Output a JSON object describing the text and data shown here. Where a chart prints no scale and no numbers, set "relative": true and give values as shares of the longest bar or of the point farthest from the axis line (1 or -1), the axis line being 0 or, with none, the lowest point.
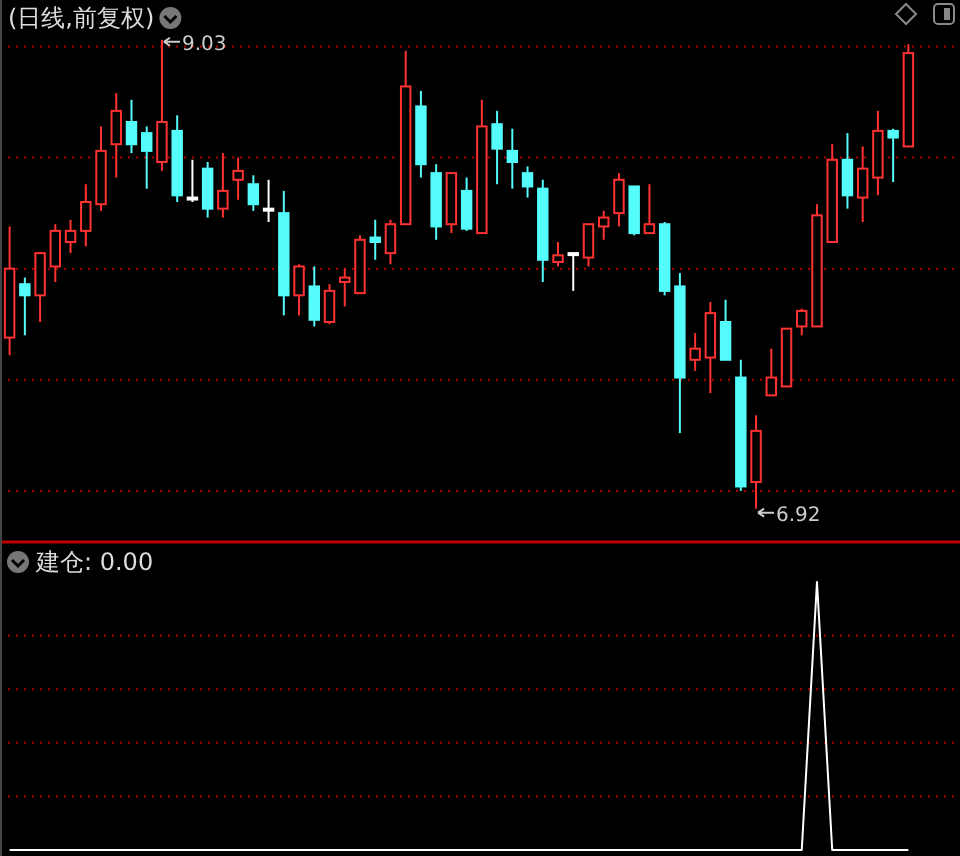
{
  "chart_data": [
    {
      "type": "candlestick",
      "title": "(日线,前复权)",
      "categories": [
        null,
        null,
        null,
        null,
        null,
        null,
        null,
        null,
        null,
        null,
        null,
        null,
        null,
        null,
        null,
        null,
        null,
        null,
        null,
        null,
        null,
        null,
        null,
        null,
        null,
        null,
        null,
        null,
        null,
        null,
        null,
        null,
        null,
        null,
        null,
        null,
        null,
        null,
        null,
        null,
        null,
        null,
        null,
        null,
        null,
        null,
        null,
        null,
        null,
        null,
        null,
        null,
        null,
        null,
        null,
        null,
        null,
        null,
        null,
        null
      ],
      "ohlc": [
        [
          7.69,
          8.19,
          7.61,
          8.0
        ],
        [
          7.93,
          7.96,
          7.7,
          7.88
        ],
        [
          7.88,
          8.07,
          7.76,
          8.07
        ],
        [
          8.01,
          8.2,
          7.94,
          8.17
        ],
        [
          8.12,
          8.22,
          8.07,
          8.17
        ],
        [
          8.17,
          8.38,
          8.1,
          8.3
        ],
        [
          8.29,
          8.64,
          8.26,
          8.53
        ],
        [
          8.56,
          8.79,
          8.41,
          8.71
        ],
        [
          8.66,
          8.76,
          8.52,
          8.56
        ],
        [
          8.61,
          8.64,
          8.36,
          8.53
        ],
        [
          8.48,
          9.03,
          8.44,
          8.66
        ],
        [
          8.62,
          8.69,
          8.3,
          8.33
        ],
        [
          8.32,
          8.49,
          8.3,
          8.32
        ],
        [
          8.45,
          8.48,
          8.23,
          8.27
        ],
        [
          8.27,
          8.52,
          8.23,
          8.35
        ],
        [
          8.4,
          8.5,
          8.31,
          8.44
        ],
        [
          8.38,
          8.42,
          8.26,
          8.29
        ],
        [
          8.27,
          8.4,
          8.21,
          8.27
        ],
        [
          8.25,
          8.35,
          7.79,
          7.88
        ],
        [
          7.88,
          8.02,
          7.79,
          8.01
        ],
        [
          7.92,
          8.01,
          7.74,
          7.77
        ],
        [
          7.76,
          7.93,
          7.75,
          7.9
        ],
        [
          7.94,
          8.0,
          7.83,
          7.96
        ],
        [
          7.89,
          8.15,
          7.89,
          8.13
        ],
        [
          8.14,
          8.22,
          8.04,
          8.12
        ],
        [
          8.07,
          8.22,
          8.02,
          8.2
        ],
        [
          8.2,
          8.98,
          8.2,
          8.82
        ],
        [
          8.73,
          8.8,
          8.41,
          8.47
        ],
        [
          8.43,
          8.47,
          8.13,
          8.19
        ],
        [
          8.2,
          8.43,
          8.16,
          8.43
        ],
        [
          8.35,
          8.41,
          8.17,
          8.18
        ],
        [
          8.16,
          8.76,
          8.16,
          8.64
        ],
        [
          8.65,
          8.71,
          8.38,
          8.54
        ],
        [
          8.53,
          8.63,
          8.36,
          8.48
        ],
        [
          8.43,
          8.46,
          8.32,
          8.37
        ],
        [
          8.36,
          8.4,
          7.94,
          8.04
        ],
        [
          8.03,
          8.12,
          8.01,
          8.06
        ],
        [
          8.07,
          8.07,
          7.9,
          8.07
        ],
        [
          8.05,
          8.2,
          8.01,
          8.2
        ],
        [
          8.19,
          8.26,
          8.13,
          8.23
        ],
        [
          8.25,
          8.43,
          8.19,
          8.4
        ],
        [
          8.37,
          8.37,
          8.15,
          8.16
        ],
        [
          8.16,
          8.38,
          8.16,
          8.2
        ],
        [
          8.2,
          8.21,
          7.88,
          7.9
        ],
        [
          7.92,
          7.98,
          7.26,
          7.51
        ],
        [
          7.59,
          7.71,
          7.54,
          7.64
        ],
        [
          7.6,
          7.85,
          7.44,
          7.8
        ],
        [
          7.76,
          7.86,
          7.59,
          7.59
        ],
        [
          7.51,
          7.59,
          7.0,
          7.02
        ],
        [
          7.04,
          7.34,
          6.92,
          7.27
        ],
        [
          7.43,
          7.64,
          7.43,
          7.51
        ],
        [
          7.47,
          7.73,
          7.47,
          7.73
        ],
        [
          7.74,
          7.82,
          7.7,
          7.81
        ],
        [
          7.74,
          8.29,
          7.74,
          8.24
        ],
        [
          8.12,
          8.56,
          8.12,
          8.49
        ],
        [
          8.49,
          8.61,
          8.27,
          8.33
        ],
        [
          8.32,
          8.55,
          8.21,
          8.45
        ],
        [
          8.41,
          8.71,
          8.33,
          8.62
        ],
        [
          8.62,
          8.63,
          8.39,
          8.59
        ],
        [
          8.55,
          9.01,
          8.55,
          8.97
        ]
      ],
      "colors": [
        "#ff3232",
        "#54fcfc",
        "#ff3232",
        "#ff3232",
        "#ff3232",
        "#ff3232",
        "#ff3232",
        "#ff3232",
        "#54fcfc",
        "#54fcfc",
        "#ff3232",
        "#54fcfc",
        "#ffffff",
        "#54fcfc",
        "#ff3232",
        "#ff3232",
        "#54fcfc",
        "#ffffff",
        "#54fcfc",
        "#ff3232",
        "#54fcfc",
        "#ff3232",
        "#ff3232",
        "#ff3232",
        "#54fcfc",
        "#ff3232",
        "#ff3232",
        "#54fcfc",
        "#54fcfc",
        "#ff3232",
        "#54fcfc",
        "#ff3232",
        "#54fcfc",
        "#54fcfc",
        "#54fcfc",
        "#54fcfc",
        "#ff3232",
        "#ffffff",
        "#ff3232",
        "#ff3232",
        "#ff3232",
        "#54fcfc",
        "#ff3232",
        "#54fcfc",
        "#54fcfc",
        "#ff3232",
        "#ff3232",
        "#54fcfc",
        "#54fcfc",
        "#ff3232",
        "#ff3232",
        "#ff3232",
        "#ff3232",
        "#ff3232",
        "#ff3232",
        "#54fcfc",
        "#ff3232",
        "#ff3232",
        "#54fcfc",
        "#ff3232"
      ],
      "ylim": [
        6.77,
        9.2
      ],
      "yticks": [
        {
          "value": 7,
          "label": null
        },
        {
          "value": 7.5,
          "label": null
        },
        {
          "value": 8,
          "label": null
        },
        {
          "value": 8.5,
          "label": null
        },
        {
          "value": 9,
          "label": null
        }
      ],
      "grid": "y",
      "annotations": [
        "9.03",
        "6.92"
      ]
    },
    {
      "type": "line",
      "title": "建仓: 0.00",
      "relative": true,
      "ref_lines": [
        {
          "axis": "y",
          "value": 0.2,
          "color": "#b00000",
          "line_style": "dotted"
        },
        {
          "axis": "y",
          "value": 0.4,
          "color": "#b00000",
          "line_style": "dotted"
        },
        {
          "axis": "y",
          "value": 0.6,
          "color": "#b00000",
          "line_style": "dotted"
        },
        {
          "axis": "y",
          "value": 0.8,
          "color": "#b00000",
          "line_style": "dotted"
        }
      ],
      "categories": [
        null,
        null,
        null,
        null,
        null,
        null,
        null,
        null,
        null,
        null,
        null,
        null,
        null,
        null,
        null,
        null,
        null,
        null,
        null,
        null,
        null,
        null,
        null,
        null,
        null,
        null,
        null,
        null,
        null,
        null,
        null,
        null,
        null,
        null,
        null,
        null,
        null,
        null,
        null,
        null,
        null,
        null,
        null,
        null,
        null,
        null,
        null,
        null,
        null,
        null,
        null,
        null,
        null,
        null,
        null,
        null,
        null,
        null,
        null,
        null
      ],
      "series": [
        {
          "color": "#ffffff",
          "values": [
            0,
            0,
            0,
            0,
            0,
            0,
            0,
            0,
            0,
            0,
            0,
            0,
            0,
            0,
            0,
            0,
            0,
            0,
            0,
            0,
            0,
            0,
            0,
            0,
            0,
            0,
            0,
            0,
            0,
            0,
            0,
            0,
            0,
            0,
            0,
            0,
            0,
            0,
            0,
            0,
            0,
            0,
            0,
            0,
            0,
            0,
            0,
            0,
            0,
            0,
            0,
            0,
            0,
            1,
            0,
            0,
            0,
            0,
            0,
            0
          ]
        }
      ]
    }
  ]
}
